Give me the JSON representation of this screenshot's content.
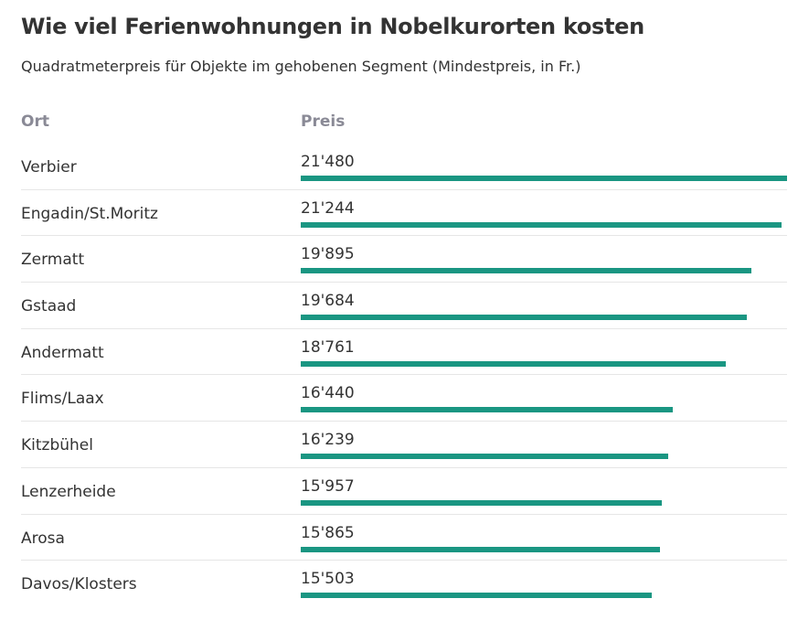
{
  "title": "Wie viel Ferienwohnungen in Nobelkurorten kosten",
  "subtitle": "Quadratmeterpreis für Objekte im gehobenen Segment (Mindestpreis, in Fr.)",
  "columns": {
    "ort": "Ort",
    "preis": "Preis"
  },
  "colors": {
    "bar": "#1a9682",
    "header": "#8a8a96",
    "text": "#333333",
    "rule": "#e6e6e6"
  },
  "chart_data": {
    "type": "bar",
    "orientation": "horizontal",
    "title": "Wie viel Ferienwohnungen in Nobelkurorten kosten",
    "subtitle": "Quadratmeterpreis für Objekte im gehobenen Segment (Mindestpreis, in Fr.)",
    "categories": [
      "Verbier",
      "Engadin/St.Moritz",
      "Zermatt",
      "Gstaad",
      "Andermatt",
      "Flims/Laax",
      "Kitzbühel",
      "Lenzerheide",
      "Arosa",
      "Davos/Klosters"
    ],
    "values": [
      21480,
      21244,
      19895,
      19684,
      18761,
      16440,
      16239,
      15957,
      15865,
      15503
    ],
    "value_labels": [
      "21'480",
      "21'244",
      "19'895",
      "19'684",
      "18'761",
      "16'440",
      "16'239",
      "15'957",
      "15'865",
      "15'503"
    ],
    "xlim": [
      0,
      21480
    ],
    "grid": false,
    "legend": "none"
  }
}
